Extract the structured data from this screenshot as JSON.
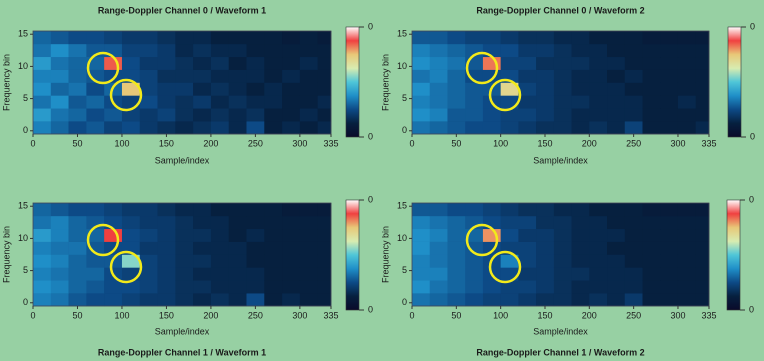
{
  "chart_data": [
    {
      "type": "heatmap",
      "title": "Range-Doppler Channel 0 / Waveform 1",
      "xlabel": "Sample/index",
      "ylabel": "Frequency bin",
      "xlim": [
        0,
        335
      ],
      "ylim": [
        -0.5,
        15.5
      ],
      "xticks": [
        0,
        50,
        100,
        150,
        200,
        250,
        300,
        335
      ],
      "yticks": [
        0,
        5,
        10,
        15
      ],
      "x_edges": [
        0,
        20,
        40,
        60,
        80,
        100,
        120,
        140,
        160,
        180,
        200,
        220,
        240,
        260,
        280,
        300,
        320,
        335
      ],
      "y_edges": [
        -0.5,
        1.5,
        3.5,
        5.5,
        7.5,
        9.5,
        11.5,
        13.5,
        15.5
      ],
      "z": [
        [
          0.14,
          0.12,
          0.1,
          0.11,
          0.09,
          0.1,
          0.08,
          0.07,
          0.06,
          0.07,
          0.08,
          0.06,
          0.1,
          0.05,
          0.06,
          0.05,
          0.06
        ],
        [
          0.16,
          0.13,
          0.12,
          0.1,
          0.11,
          0.09,
          0.08,
          0.09,
          0.07,
          0.06,
          0.07,
          0.06,
          0.07,
          0.05,
          0.05,
          0.06,
          0.05
        ],
        [
          0.13,
          0.15,
          0.11,
          0.12,
          0.1,
          0.09,
          0.1,
          0.08,
          0.07,
          0.08,
          0.06,
          0.07,
          0.06,
          0.06,
          0.05,
          0.05,
          0.06
        ],
        [
          0.15,
          0.12,
          0.13,
          0.1,
          0.12,
          0.3,
          0.09,
          0.08,
          0.08,
          0.06,
          0.07,
          0.06,
          0.05,
          0.06,
          0.05,
          0.05,
          0.05
        ],
        [
          0.14,
          0.14,
          0.12,
          0.11,
          0.1,
          0.1,
          0.09,
          0.07,
          0.07,
          0.07,
          0.06,
          0.06,
          0.06,
          0.05,
          0.06,
          0.05,
          0.05
        ],
        [
          0.16,
          0.13,
          0.12,
          0.12,
          0.34,
          0.1,
          0.08,
          0.08,
          0.07,
          0.06,
          0.07,
          0.05,
          0.06,
          0.05,
          0.05,
          0.06,
          0.05
        ],
        [
          0.13,
          0.15,
          0.13,
          0.11,
          0.11,
          0.09,
          0.09,
          0.08,
          0.06,
          0.07,
          0.06,
          0.06,
          0.05,
          0.05,
          0.05,
          0.05,
          0.05
        ],
        [
          0.12,
          0.11,
          0.1,
          0.1,
          0.09,
          0.08,
          0.08,
          0.07,
          0.06,
          0.06,
          0.05,
          0.05,
          0.05,
          0.05,
          0.04,
          0.05,
          0.04
        ]
      ],
      "zlim": [
        0,
        0.4
      ],
      "zticks": [
        0,
        {
          "value": 0.4,
          "label": "0"
        }
      ],
      "colorscale": [
        "#0a0a2a",
        "#06203f",
        "#0d4a86",
        "#1f8fc8",
        "#4fc6d8",
        "#d8ecb0",
        "#e8c878",
        "#f04040",
        "#ffffff"
      ]
    },
    {
      "type": "heatmap",
      "title": "Range-Doppler Channel 0 / Waveform 2",
      "xlabel": "Sample/index",
      "ylabel": "Frequency bin",
      "xlim": [
        0,
        335
      ],
      "ylim": [
        -0.5,
        15.5
      ],
      "xticks": [
        0,
        50,
        100,
        150,
        200,
        250,
        300,
        335
      ],
      "yticks": [
        0,
        5,
        10,
        15
      ],
      "x_edges": [
        0,
        20,
        40,
        60,
        80,
        100,
        120,
        140,
        160,
        180,
        200,
        220,
        240,
        260,
        280,
        300,
        320,
        335
      ],
      "y_edges": [
        -0.5,
        1.5,
        3.5,
        5.5,
        7.5,
        9.5,
        11.5,
        13.5,
        15.5
      ],
      "z": [
        [
          0.13,
          0.12,
          0.11,
          0.1,
          0.1,
          0.09,
          0.08,
          0.07,
          0.07,
          0.06,
          0.07,
          0.06,
          0.09,
          0.05,
          0.05,
          0.05,
          0.06
        ],
        [
          0.15,
          0.14,
          0.11,
          0.11,
          0.1,
          0.09,
          0.09,
          0.08,
          0.07,
          0.06,
          0.06,
          0.06,
          0.06,
          0.05,
          0.05,
          0.05,
          0.05
        ],
        [
          0.14,
          0.13,
          0.12,
          0.11,
          0.1,
          0.1,
          0.08,
          0.08,
          0.07,
          0.07,
          0.06,
          0.06,
          0.06,
          0.05,
          0.05,
          0.06,
          0.05
        ],
        [
          0.15,
          0.13,
          0.12,
          0.11,
          0.11,
          0.28,
          0.09,
          0.08,
          0.07,
          0.06,
          0.06,
          0.06,
          0.05,
          0.05,
          0.05,
          0.05,
          0.05
        ],
        [
          0.13,
          0.14,
          0.12,
          0.1,
          0.1,
          0.1,
          0.08,
          0.08,
          0.07,
          0.06,
          0.06,
          0.05,
          0.06,
          0.05,
          0.05,
          0.05,
          0.05
        ],
        [
          0.15,
          0.14,
          0.13,
          0.11,
          0.33,
          0.09,
          0.09,
          0.07,
          0.07,
          0.07,
          0.06,
          0.06,
          0.05,
          0.05,
          0.05,
          0.05,
          0.05
        ],
        [
          0.14,
          0.13,
          0.12,
          0.11,
          0.1,
          0.1,
          0.08,
          0.08,
          0.07,
          0.06,
          0.06,
          0.05,
          0.05,
          0.05,
          0.05,
          0.05,
          0.05
        ],
        [
          0.11,
          0.11,
          0.1,
          0.09,
          0.09,
          0.08,
          0.07,
          0.07,
          0.06,
          0.06,
          0.05,
          0.05,
          0.05,
          0.04,
          0.04,
          0.04,
          0.04
        ]
      ],
      "zlim": [
        0,
        0.4
      ],
      "zticks": [
        0,
        {
          "value": 0.4,
          "label": "0"
        }
      ],
      "colorscale": [
        "#0a0a2a",
        "#06203f",
        "#0d4a86",
        "#1f8fc8",
        "#4fc6d8",
        "#d8ecb0",
        "#e8c878",
        "#f04040",
        "#ffffff"
      ]
    },
    {
      "type": "heatmap",
      "title": "Range-Doppler Channel 1 / Waveform 1",
      "xlabel": "Sample/index",
      "ylabel": "Frequency bin",
      "xlim": [
        0,
        335
      ],
      "ylim": [
        -0.5,
        15.5
      ],
      "xticks": [
        0,
        50,
        100,
        150,
        200,
        250,
        300,
        335
      ],
      "yticks": [
        0,
        5,
        10,
        15
      ],
      "x_edges": [
        0,
        20,
        40,
        60,
        80,
        100,
        120,
        140,
        160,
        180,
        200,
        220,
        240,
        260,
        280,
        300,
        320,
        335
      ],
      "y_edges": [
        -0.5,
        1.5,
        3.5,
        5.5,
        7.5,
        9.5,
        11.5,
        13.5,
        15.5
      ],
      "z": [
        [
          0.14,
          0.13,
          0.11,
          0.1,
          0.1,
          0.09,
          0.08,
          0.08,
          0.07,
          0.06,
          0.07,
          0.06,
          0.1,
          0.05,
          0.06,
          0.05,
          0.05
        ],
        [
          0.15,
          0.14,
          0.12,
          0.11,
          0.1,
          0.1,
          0.09,
          0.08,
          0.07,
          0.07,
          0.06,
          0.06,
          0.06,
          0.05,
          0.05,
          0.05,
          0.05
        ],
        [
          0.14,
          0.13,
          0.12,
          0.12,
          0.1,
          0.09,
          0.09,
          0.08,
          0.07,
          0.06,
          0.06,
          0.06,
          0.06,
          0.05,
          0.05,
          0.05,
          0.05
        ],
        [
          0.15,
          0.14,
          0.12,
          0.11,
          0.11,
          0.22,
          0.09,
          0.08,
          0.07,
          0.07,
          0.06,
          0.06,
          0.05,
          0.05,
          0.05,
          0.05,
          0.05
        ],
        [
          0.14,
          0.13,
          0.13,
          0.11,
          0.1,
          0.1,
          0.08,
          0.08,
          0.07,
          0.06,
          0.06,
          0.06,
          0.05,
          0.05,
          0.05,
          0.05,
          0.05
        ],
        [
          0.16,
          0.14,
          0.12,
          0.12,
          0.35,
          0.1,
          0.09,
          0.08,
          0.07,
          0.07,
          0.06,
          0.05,
          0.06,
          0.05,
          0.05,
          0.05,
          0.05
        ],
        [
          0.13,
          0.14,
          0.12,
          0.11,
          0.1,
          0.09,
          0.08,
          0.08,
          0.07,
          0.06,
          0.06,
          0.05,
          0.05,
          0.05,
          0.05,
          0.05,
          0.05
        ],
        [
          0.12,
          0.11,
          0.1,
          0.1,
          0.09,
          0.08,
          0.08,
          0.07,
          0.06,
          0.06,
          0.05,
          0.05,
          0.05,
          0.05,
          0.04,
          0.04,
          0.04
        ]
      ],
      "zlim": [
        0,
        0.4
      ],
      "zticks": [
        0,
        {
          "value": 0.4,
          "label": "0"
        }
      ],
      "colorscale": [
        "#0a0a2a",
        "#06203f",
        "#0d4a86",
        "#1f8fc8",
        "#4fc6d8",
        "#d8ecb0",
        "#e8c878",
        "#f04040",
        "#ffffff"
      ]
    },
    {
      "type": "heatmap",
      "title": "Range-Doppler Channel 1 / Waveform 2",
      "xlabel": "Sample/index",
      "ylabel": "Frequency bin",
      "xlim": [
        0,
        335
      ],
      "ylim": [
        -0.5,
        15.5
      ],
      "xticks": [
        0,
        50,
        100,
        150,
        200,
        250,
        300,
        335
      ],
      "yticks": [
        0,
        5,
        10,
        15
      ],
      "x_edges": [
        0,
        20,
        40,
        60,
        80,
        100,
        120,
        140,
        160,
        180,
        200,
        220,
        240,
        260,
        280,
        300,
        320,
        335
      ],
      "y_edges": [
        -0.5,
        1.5,
        3.5,
        5.5,
        7.5,
        9.5,
        11.5,
        13.5,
        15.5
      ],
      "z": [
        [
          0.13,
          0.12,
          0.11,
          0.1,
          0.09,
          0.09,
          0.08,
          0.07,
          0.07,
          0.06,
          0.07,
          0.06,
          0.08,
          0.05,
          0.05,
          0.05,
          0.05
        ],
        [
          0.15,
          0.13,
          0.12,
          0.11,
          0.1,
          0.09,
          0.09,
          0.08,
          0.07,
          0.06,
          0.06,
          0.06,
          0.06,
          0.05,
          0.05,
          0.05,
          0.05
        ],
        [
          0.14,
          0.14,
          0.12,
          0.11,
          0.1,
          0.1,
          0.08,
          0.08,
          0.07,
          0.07,
          0.06,
          0.06,
          0.06,
          0.05,
          0.05,
          0.05,
          0.05
        ],
        [
          0.14,
          0.13,
          0.12,
          0.11,
          0.1,
          0.14,
          0.09,
          0.08,
          0.07,
          0.06,
          0.06,
          0.06,
          0.05,
          0.05,
          0.05,
          0.05,
          0.05
        ],
        [
          0.15,
          0.13,
          0.12,
          0.11,
          0.1,
          0.09,
          0.09,
          0.08,
          0.07,
          0.06,
          0.06,
          0.05,
          0.05,
          0.05,
          0.05,
          0.05,
          0.05
        ],
        [
          0.15,
          0.14,
          0.12,
          0.12,
          0.32,
          0.1,
          0.08,
          0.08,
          0.07,
          0.06,
          0.06,
          0.06,
          0.05,
          0.05,
          0.05,
          0.05,
          0.05
        ],
        [
          0.14,
          0.13,
          0.12,
          0.11,
          0.1,
          0.09,
          0.09,
          0.07,
          0.07,
          0.06,
          0.06,
          0.05,
          0.05,
          0.05,
          0.05,
          0.05,
          0.05
        ],
        [
          0.11,
          0.11,
          0.1,
          0.1,
          0.09,
          0.08,
          0.07,
          0.07,
          0.06,
          0.06,
          0.05,
          0.05,
          0.05,
          0.04,
          0.04,
          0.04,
          0.04
        ]
      ],
      "zlim": [
        0,
        0.4
      ],
      "zticks": [
        0,
        {
          "value": 0.4,
          "label": "0"
        }
      ],
      "colorscale": [
        "#0a0a2a",
        "#06203f",
        "#0d4a86",
        "#1f8fc8",
        "#4fc6d8",
        "#d8ecb0",
        "#e8c878",
        "#f04040",
        "#ffffff"
      ]
    }
  ]
}
